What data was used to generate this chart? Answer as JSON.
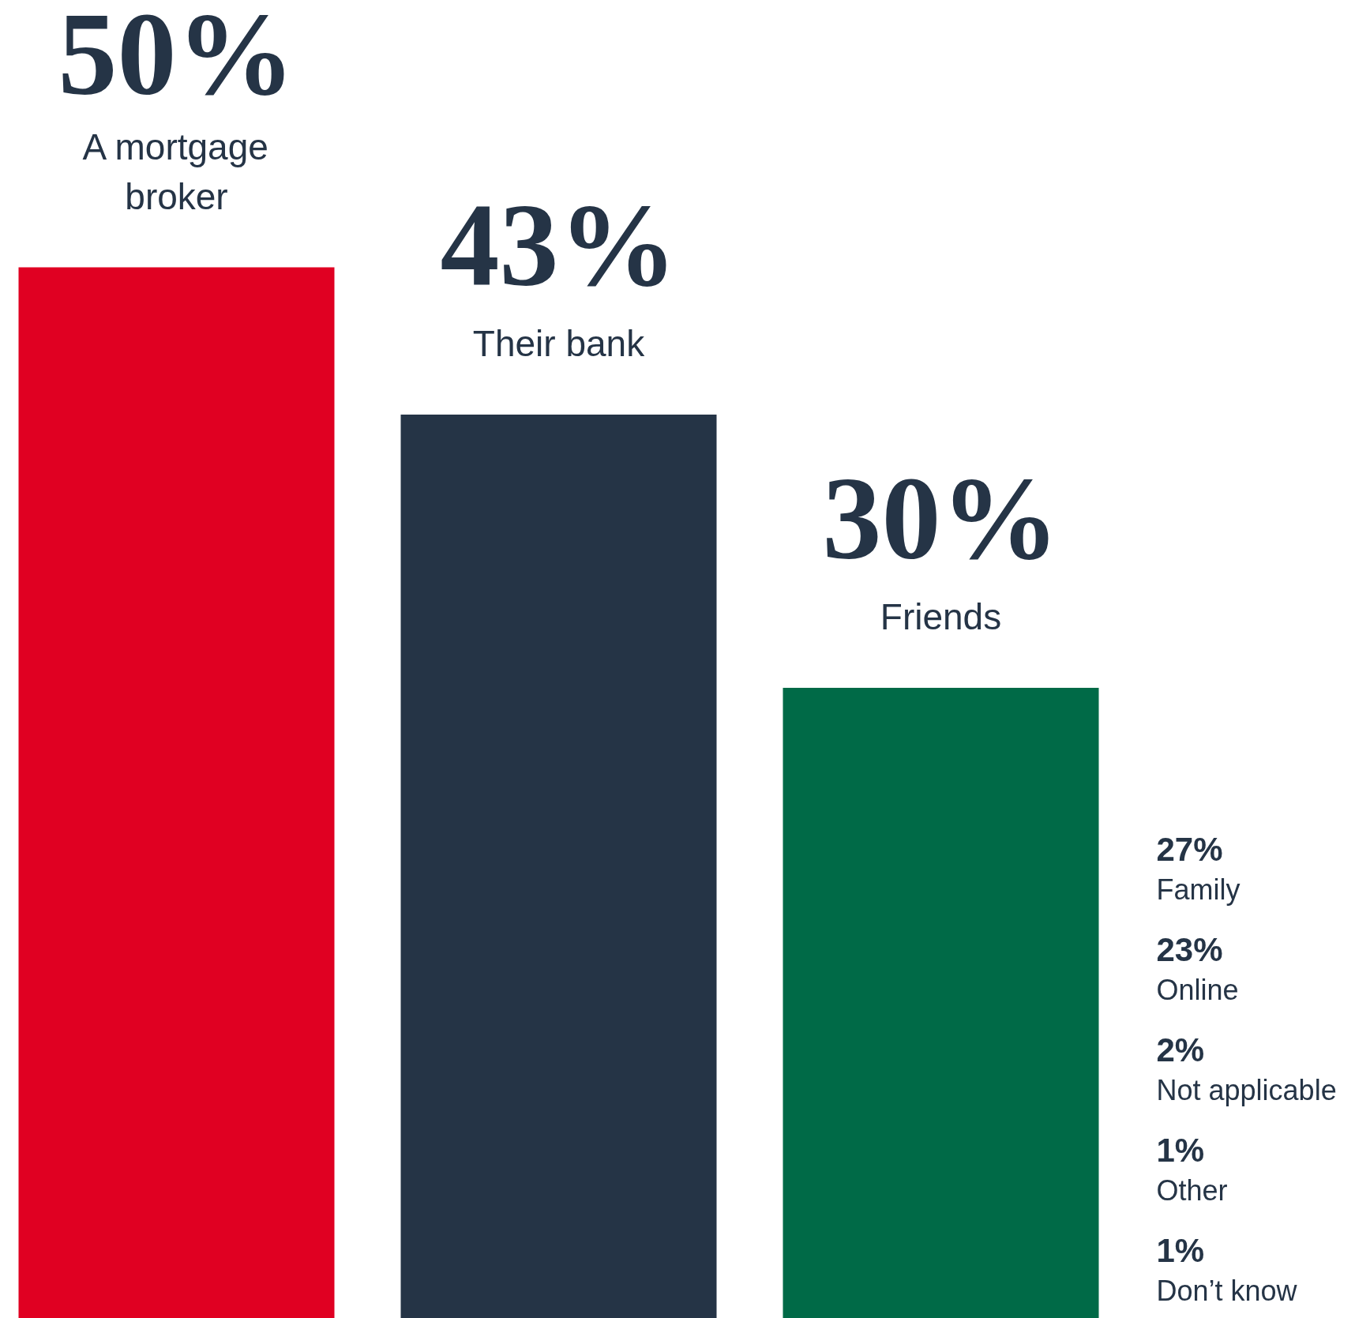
{
  "chart_data": {
    "type": "bar",
    "categories": [
      "A mortgage broker",
      "Their bank",
      "Friends"
    ],
    "values": [
      50,
      43,
      30
    ],
    "colors": [
      "#e00022",
      "#253446",
      "#006a47"
    ],
    "value_labels": [
      "50%",
      "43%",
      "30%"
    ],
    "annotations": [
      "27%\nFamily",
      "23%\nOnline",
      "2%\nNot applicable",
      "1%\nOther",
      "1%\nDon’t know"
    ]
  }
}
